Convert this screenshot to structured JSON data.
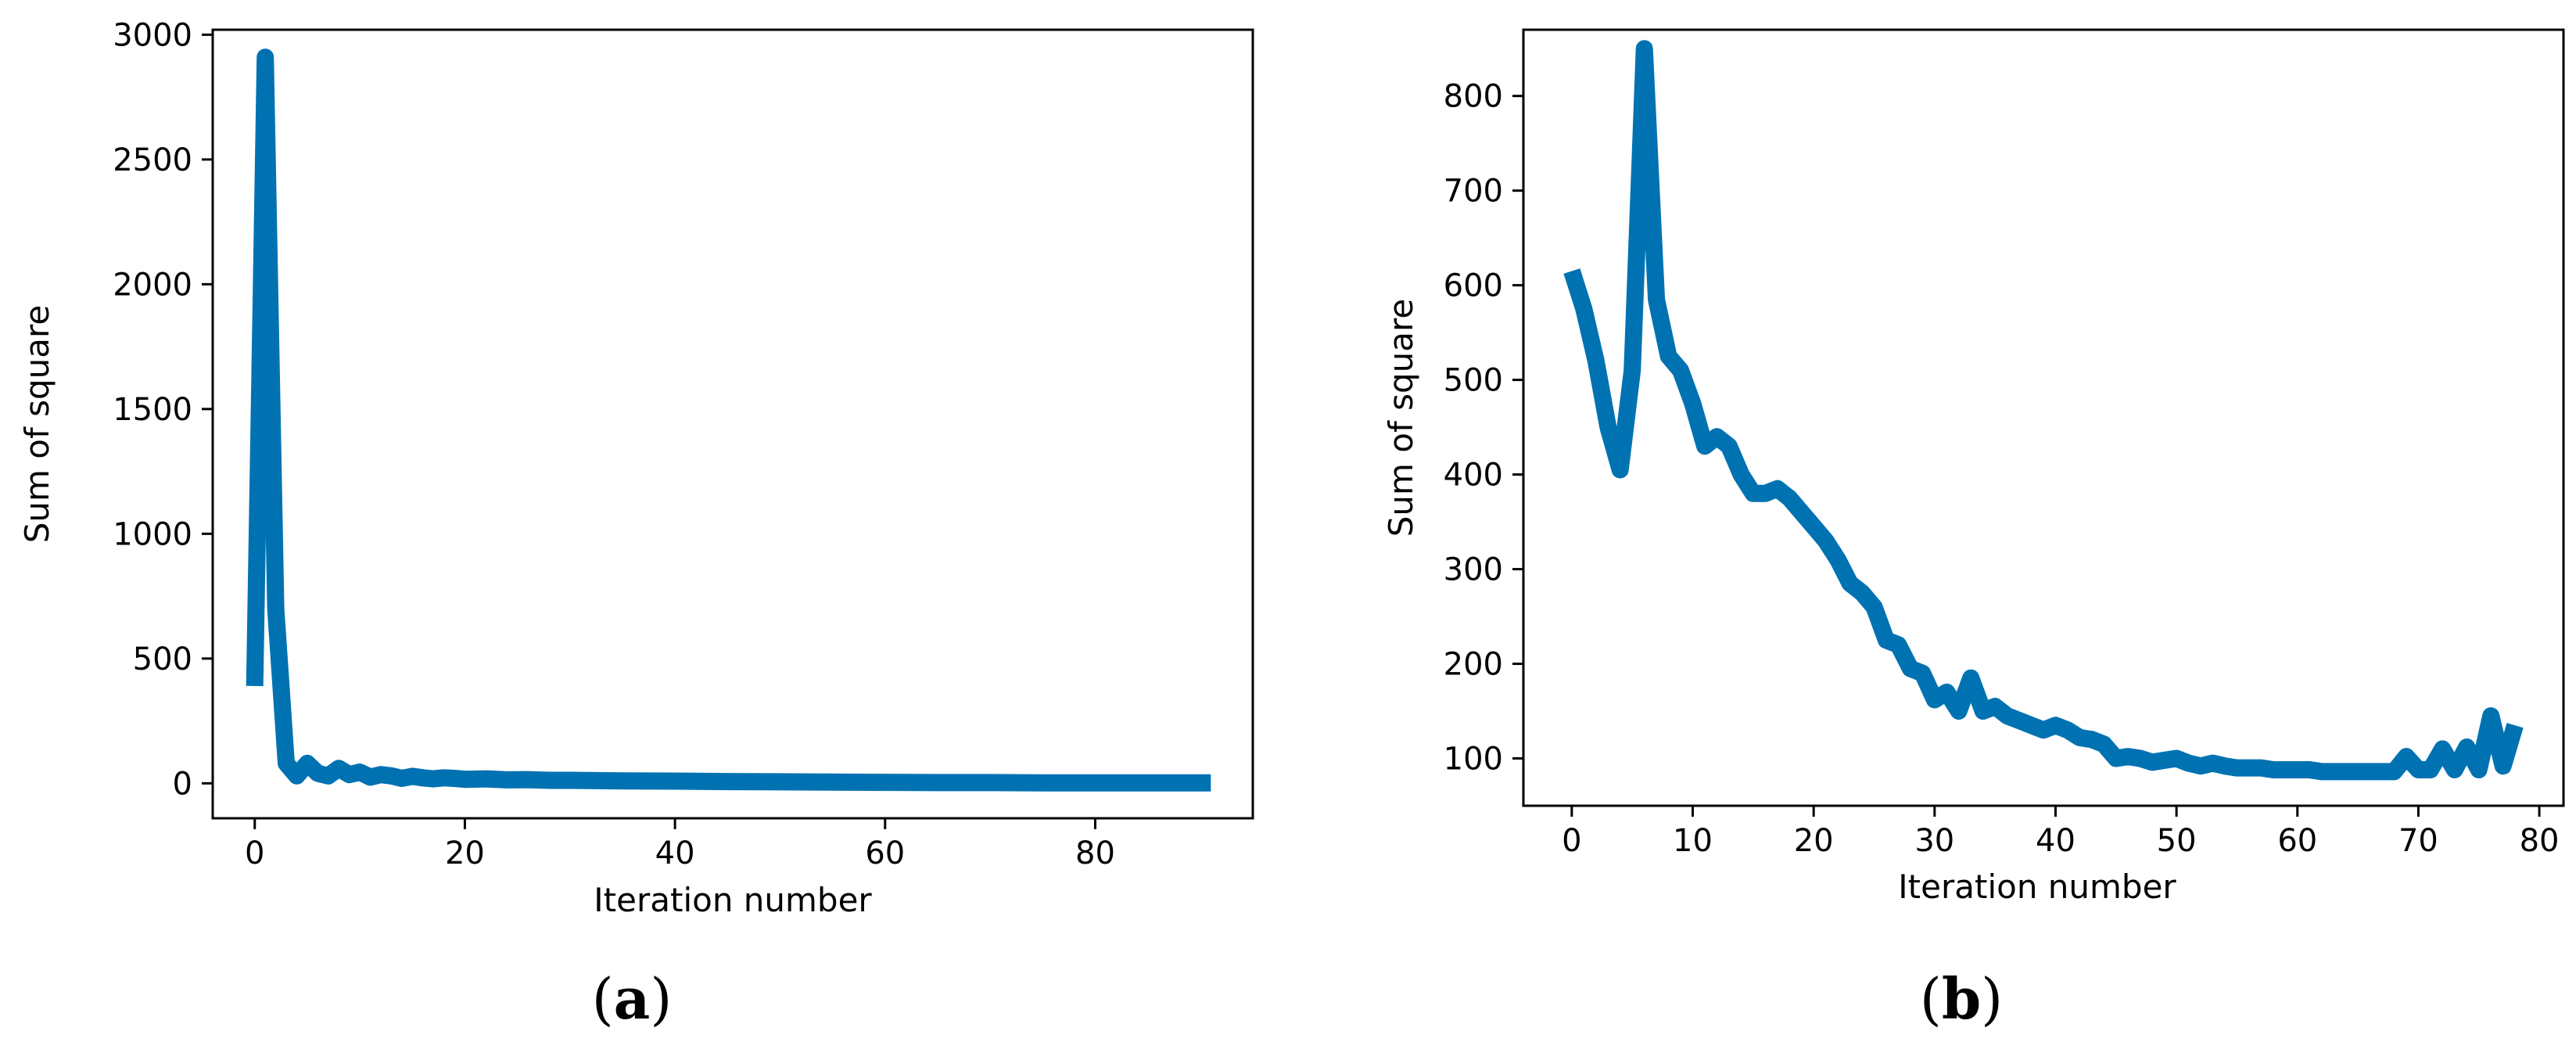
{
  "chart_data": [
    {
      "type": "line",
      "caption": "a",
      "xlabel": "Iteration number",
      "ylabel": "Sum of square",
      "xlim": [
        -4,
        95
      ],
      "ylim": [
        -140,
        3020
      ],
      "xticks": [
        0,
        20,
        40,
        60,
        80
      ],
      "yticks": [
        0,
        500,
        1000,
        1500,
        2000,
        2500,
        3000
      ],
      "grid": false,
      "line_color": "#0072B2",
      "x": [
        0,
        1,
        2,
        3,
        4,
        5,
        6,
        7,
        8,
        9,
        10,
        11,
        12,
        13,
        14,
        15,
        16,
        17,
        18,
        19,
        20,
        22,
        24,
        26,
        28,
        30,
        35,
        40,
        45,
        50,
        55,
        60,
        65,
        70,
        75,
        80,
        85,
        91
      ],
      "y": [
        390,
        2910,
        700,
        80,
        30,
        80,
        40,
        30,
        60,
        35,
        45,
        25,
        35,
        30,
        20,
        28,
        22,
        18,
        22,
        20,
        16,
        18,
        14,
        15,
        12,
        12,
        10,
        9,
        7,
        6,
        5,
        4,
        3,
        3,
        2,
        2,
        2,
        2
      ]
    },
    {
      "type": "line",
      "caption": "b",
      "xlabel": "Iteration number",
      "ylabel": "Sum of square",
      "xlim": [
        -4,
        82
      ],
      "ylim": [
        50,
        870
      ],
      "xticks": [
        0,
        10,
        20,
        30,
        40,
        50,
        60,
        70,
        80
      ],
      "yticks": [
        100,
        200,
        300,
        400,
        500,
        600,
        700,
        800
      ],
      "grid": false,
      "line_color": "#0072B2",
      "x": [
        0,
        1,
        2,
        3,
        4,
        5,
        6,
        7,
        8,
        9,
        10,
        11,
        12,
        13,
        14,
        15,
        16,
        17,
        18,
        19,
        20,
        21,
        22,
        23,
        24,
        25,
        26,
        27,
        28,
        29,
        30,
        31,
        32,
        33,
        34,
        35,
        36,
        37,
        38,
        39,
        40,
        41,
        42,
        43,
        44,
        45,
        46,
        47,
        48,
        49,
        50,
        51,
        52,
        53,
        54,
        55,
        56,
        57,
        58,
        59,
        60,
        61,
        62,
        63,
        64,
        65,
        66,
        67,
        68,
        69,
        70,
        71,
        72,
        73,
        74,
        75,
        76,
        77,
        78
      ],
      "y": [
        615,
        575,
        520,
        450,
        405,
        510,
        850,
        585,
        525,
        510,
        475,
        430,
        440,
        430,
        400,
        380,
        380,
        385,
        375,
        360,
        345,
        330,
        310,
        285,
        275,
        260,
        225,
        220,
        195,
        190,
        162,
        170,
        150,
        185,
        150,
        155,
        145,
        140,
        135,
        130,
        135,
        130,
        122,
        120,
        115,
        100,
        102,
        100,
        96,
        98,
        100,
        95,
        92,
        95,
        92,
        90,
        90,
        90,
        88,
        88,
        88,
        88,
        86,
        86,
        86,
        86,
        86,
        86,
        86,
        102,
        88,
        88,
        110,
        88,
        112,
        88,
        145,
        92,
        135
      ]
    }
  ]
}
